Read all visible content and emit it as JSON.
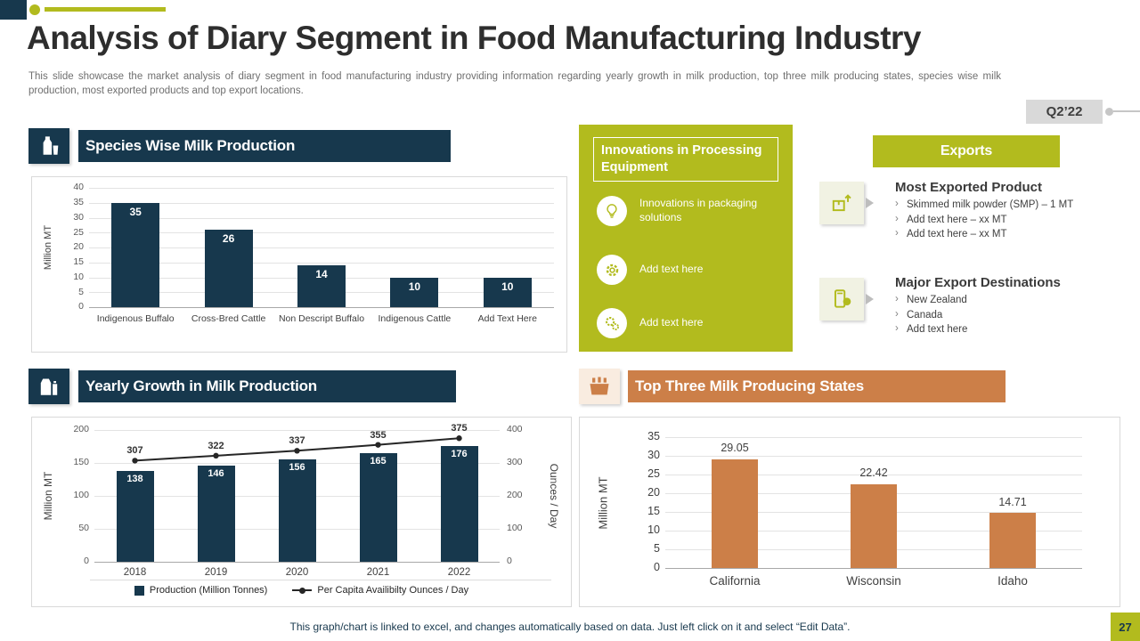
{
  "page": {
    "title": "Analysis of Diary Segment in Food Manufacturing Industry",
    "subtitle": "This slide showcase the market analysis of diary segment in food manufacturing industry providing information regarding yearly growth in milk production, top three milk producing states, species wise milk production, most exported products and top export locations.",
    "badge": "Q2’22",
    "page_number": "27",
    "footer": "This graph/chart is linked to excel, and changes automatically based on data. Just left click on it and select “Edit Data”."
  },
  "colors": {
    "navy": "#17384d",
    "olive": "#b2bb1e",
    "orange": "#cc7f48",
    "badge_gray": "#d9d9d9"
  },
  "sections": {
    "species": {
      "title": "Species Wise Milk Production",
      "icon": "milk-bottle-icon"
    },
    "innovations": {
      "title": "Innovations in Processing Equipment",
      "items": [
        {
          "icon": "lightbulb-icon",
          "label": "Innovations in packaging solutions"
        },
        {
          "icon": "gear-icon",
          "label": "Add text here"
        },
        {
          "icon": "gears-icon",
          "label": "Add text here"
        }
      ]
    },
    "exports": {
      "title": "Exports",
      "groups": [
        {
          "icon": "package-export-icon",
          "title": "Most Exported Product",
          "bullets": [
            "Skimmed milk powder (SMP) – 1 MT",
            "Add text here – xx MT",
            "Add text here – xx MT"
          ]
        },
        {
          "icon": "mobile-payment-icon",
          "title": "Major Export Destinations",
          "bullets": [
            "New Zealand",
            "Canada",
            "Add text here"
          ]
        }
      ]
    },
    "yearly": {
      "title": "Yearly Growth in Milk Production",
      "icon": "milk-products-icon"
    },
    "states": {
      "title": "Top Three Milk Producing States",
      "icon": "milk-crate-icon"
    }
  },
  "chart_data": [
    {
      "type": "bar",
      "title": "Species Wise Milk Production",
      "categories": [
        "Indigenous Buffalo",
        "Cross-Bred Cattle",
        "Non Descript Buffalo",
        "Indigenous Cattle",
        "Add Text Here"
      ],
      "values": [
        35,
        26,
        14,
        10,
        10
      ],
      "xlabel": "",
      "ylabel": "Million MT",
      "ylim": [
        0,
        40
      ],
      "ytick_step": 5,
      "bar_color": "#17384d",
      "grid": true,
      "legend_position": "none"
    },
    {
      "type": "combo",
      "title": "Yearly Growth in Milk Production",
      "categories": [
        "2018",
        "2019",
        "2020",
        "2021",
        "2022"
      ],
      "series": [
        {
          "name": "Production (Million Tonnes)",
          "type": "bar",
          "axis": "left",
          "color": "#17384d",
          "values": [
            138,
            146,
            156,
            165,
            176
          ]
        },
        {
          "name": "Per Capita Availibilty Ounces / Day",
          "type": "line",
          "axis": "right",
          "color": "#262626",
          "values": [
            307,
            322,
            337,
            355,
            375
          ]
        }
      ],
      "ylabel_left": "Million MT",
      "ylabel_right": "Ounces / Day",
      "ylim_left": [
        0,
        200
      ],
      "ylim_right": [
        0,
        400
      ],
      "ytick_step_left": 50,
      "ytick_step_right": 100,
      "grid": true,
      "legend_position": "bottom"
    },
    {
      "type": "bar",
      "title": "Top Three Milk Producing States",
      "categories": [
        "California",
        "Wisconsin",
        "Idaho"
      ],
      "values": [
        29.05,
        22.42,
        14.71
      ],
      "xlabel": "",
      "ylabel": "Million MT",
      "ylim": [
        0,
        35
      ],
      "ytick_step": 5,
      "bar_color": "#cc7f48",
      "grid": true,
      "legend_position": "none"
    }
  ]
}
